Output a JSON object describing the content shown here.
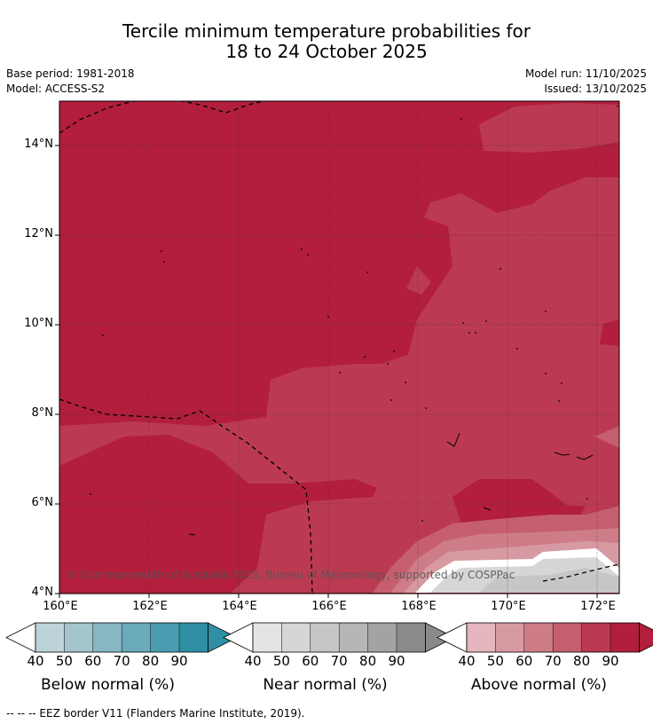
{
  "title_line1": "Tercile minimum temperature probabilities for",
  "title_line2": "18 to 24 October 2025",
  "meta": {
    "base_period": "Base period: 1981-2018",
    "model": "Model: ACCESS-S2",
    "model_run": "Model run: 11/10/2025",
    "issued": "Issued: 13/10/2025"
  },
  "map": {
    "lat_ticks": [
      "14°N",
      "12°N",
      "10°N",
      "8°N",
      "6°N",
      "4°N"
    ],
    "lon_ticks": [
      "160°E",
      "162°E",
      "164°E",
      "166°E",
      "168°E",
      "170°E",
      "172°E"
    ],
    "copyright": "© Commonwealth of Australia 2025, Bureau of Meteorology, supported by COSPPac"
  },
  "colorbars": [
    {
      "label": "Below normal (%)",
      "ticks": [
        "40",
        "50",
        "60",
        "70",
        "80",
        "90"
      ],
      "colors": [
        "#bdd3da",
        "#a4c5cc",
        "#87b7c3",
        "#6aabbb",
        "#4a9db0",
        "#2f8fa5"
      ]
    },
    {
      "label": "Near normal (%)",
      "ticks": [
        "40",
        "50",
        "60",
        "70",
        "80",
        "90"
      ],
      "colors": [
        "#e4e4e4",
        "#d6d6d6",
        "#c6c6c6",
        "#b6b6b6",
        "#a3a3a3",
        "#8a8a8a"
      ]
    },
    {
      "label": "Above normal (%)",
      "ticks": [
        "40",
        "50",
        "60",
        "70",
        "80",
        "90"
      ],
      "colors": [
        "#e3b7bd",
        "#d79aa3",
        "#ce7d88",
        "#c55f6e",
        "#bb3a52",
        "#b21e3c"
      ]
    }
  ],
  "footer": "--  --  -- EEZ border V11 (Flanders Marine Institute, 2019)."
}
